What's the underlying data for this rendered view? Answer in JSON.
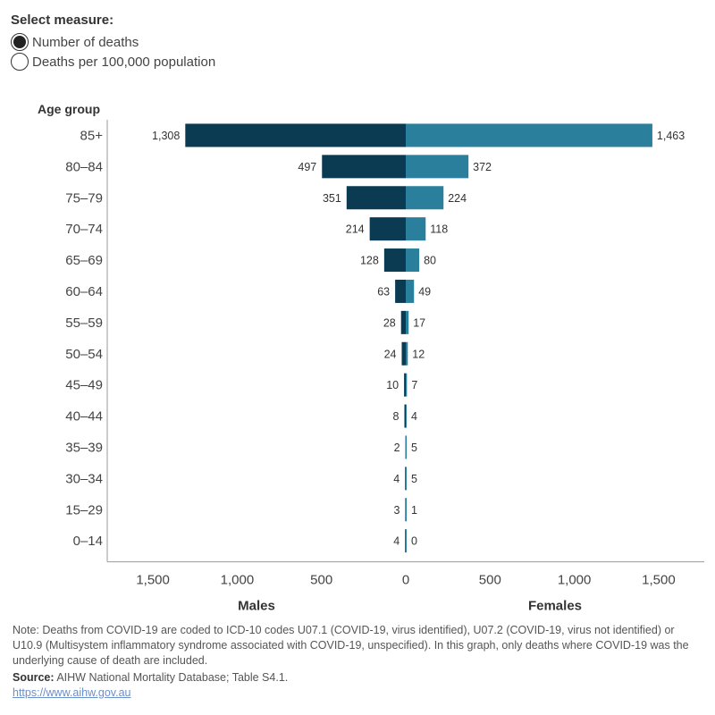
{
  "controls": {
    "title": "Select measure:",
    "options": [
      {
        "label": "Number of deaths",
        "selected": true
      },
      {
        "label": "Deaths per 100,000 population",
        "selected": false
      }
    ]
  },
  "chart_data": {
    "type": "bar",
    "orientation": "horizontal-butterfly",
    "ylabel": "Age group",
    "categories": [
      "85+",
      "80–84",
      "75–79",
      "70–74",
      "65–69",
      "60–64",
      "55–59",
      "50–54",
      "45–49",
      "40–44",
      "35–39",
      "30–34",
      "15–29",
      "0–14"
    ],
    "series": [
      {
        "name": "Males",
        "side": "left",
        "color": "#0b3a53",
        "values": [
          1308,
          497,
          351,
          214,
          128,
          63,
          28,
          24,
          10,
          8,
          2,
          4,
          3,
          4
        ],
        "labels": [
          "1,308",
          "497",
          "351",
          "214",
          "128",
          "63",
          "28",
          "24",
          "10",
          "8",
          "2",
          "4",
          "3",
          "4"
        ]
      },
      {
        "name": "Females",
        "side": "right",
        "color": "#2a7f9c",
        "values": [
          1463,
          372,
          224,
          118,
          80,
          49,
          17,
          12,
          7,
          4,
          5,
          5,
          1,
          0
        ],
        "labels": [
          "1,463",
          "372",
          "224",
          "118",
          "80",
          "49",
          "17",
          "12",
          "7",
          "4",
          "5",
          "5",
          "1",
          "0"
        ]
      }
    ],
    "left_axis": {
      "ticks": [
        1500,
        1000,
        500,
        0
      ],
      "tick_labels": [
        "1,500",
        "1,000",
        "500",
        "0"
      ],
      "label": "Males"
    },
    "right_axis": {
      "ticks": [
        500,
        1000,
        1500
      ],
      "tick_labels": [
        "500",
        "1,000",
        "1,500"
      ],
      "label": "Females"
    },
    "xlim": [
      0,
      1500
    ]
  },
  "footer": {
    "note": "Note: Deaths from COVID-19 are coded to ICD-10 codes U07.1 (COVID-19, virus identified), U07.2 (COVID-19, virus not identified) or U10.9 (Multisystem inflammatory syndrome associated with COVID-19, unspecified). In this graph, only deaths where COVID-19 was the underlying cause of death are included.",
    "source_label": "Source:",
    "source_text": " AIHW National Mortality Database; Table S4.1.",
    "link": "https://www.aihw.gov.au"
  }
}
